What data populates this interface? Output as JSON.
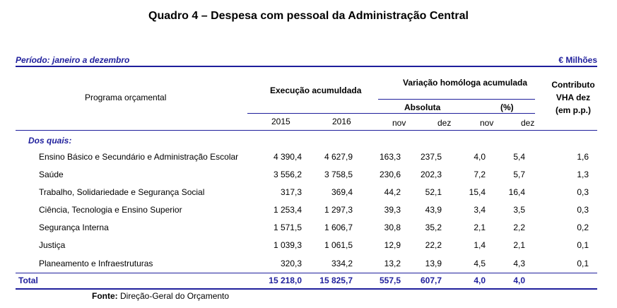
{
  "title": "Quadro 4 – Despesa com pessoal da Administração Central",
  "period": "Período: janeiro a dezembro",
  "unit": "€ Milhões",
  "headers": {
    "program": "Programa orçamental",
    "execution": "Execução acumuldada",
    "variation": "Variação homóloga acumulada",
    "absolute": "Absoluta",
    "percent": "(%)",
    "contrib_line1": "Contributo",
    "contrib_line2": "VHA dez",
    "contrib_line3": "(em p.p.)",
    "y2015": "2015",
    "y2016": "2016",
    "abs_nov": "nov",
    "abs_dez": "dez",
    "pct_nov": "nov",
    "pct_dez": "dez"
  },
  "section_label": "Dos quais:",
  "rows": [
    {
      "name": "Ensino Básico e Secundário e Administração Escolar",
      "v2015": "4 390,4",
      "v2016": "4 627,9",
      "abs_nov": "163,3",
      "abs_dez": "237,5",
      "pct_nov": "4,0",
      "pct_dez": "5,4",
      "contrib": "1,6"
    },
    {
      "name": "Saúde",
      "v2015": "3 556,2",
      "v2016": "3 758,5",
      "abs_nov": "230,6",
      "abs_dez": "202,3",
      "pct_nov": "7,2",
      "pct_dez": "5,7",
      "contrib": "1,3"
    },
    {
      "name": "Trabalho, Solidariedade e Segurança Social",
      "v2015": "317,3",
      "v2016": "369,4",
      "abs_nov": "44,2",
      "abs_dez": "52,1",
      "pct_nov": "15,4",
      "pct_dez": "16,4",
      "contrib": "0,3"
    },
    {
      "name": "Ciência, Tecnologia e Ensino Superior",
      "v2015": "1 253,4",
      "v2016": "1 297,3",
      "abs_nov": "39,3",
      "abs_dez": "43,9",
      "pct_nov": "3,4",
      "pct_dez": "3,5",
      "contrib": "0,3"
    },
    {
      "name": "Segurança Interna",
      "v2015": "1 571,5",
      "v2016": "1 606,7",
      "abs_nov": "30,8",
      "abs_dez": "35,2",
      "pct_nov": "2,1",
      "pct_dez": "2,2",
      "contrib": "0,2"
    },
    {
      "name": "Justiça",
      "v2015": "1 039,3",
      "v2016": "1 061,5",
      "abs_nov": "12,9",
      "abs_dez": "22,2",
      "pct_nov": "1,4",
      "pct_dez": "2,1",
      "contrib": "0,1"
    },
    {
      "name": "Planeamento e Infraestruturas",
      "v2015": "320,3",
      "v2016": "334,2",
      "abs_nov": "13,2",
      "abs_dez": "13,9",
      "pct_nov": "4,5",
      "pct_dez": "4,3",
      "contrib": "0,1"
    }
  ],
  "total": {
    "name": "Total",
    "v2015": "15 218,0",
    "v2016": "15 825,7",
    "abs_nov": "557,5",
    "abs_dez": "607,7",
    "pct_nov": "4,0",
    "pct_dez": "4,0"
  },
  "source_label": "Fonte:",
  "source_text": " Direção-Geral do Orçamento",
  "colors": {
    "accent": "#1f1f9c"
  }
}
